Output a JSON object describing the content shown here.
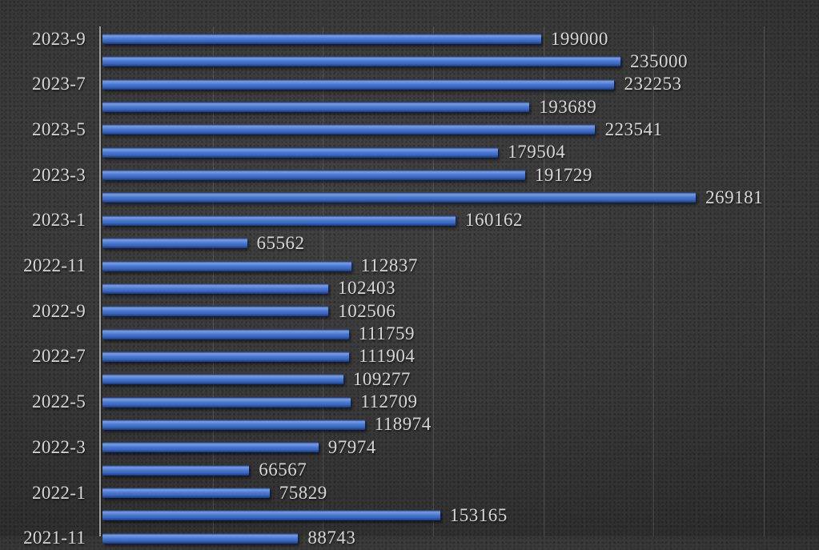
{
  "chart_data": {
    "type": "bar",
    "orientation": "horizontal",
    "title": "",
    "xlabel": "",
    "ylabel": "",
    "xlim": [
      0,
      300000
    ],
    "gridline_interval": 50000,
    "grid": true,
    "legend": false,
    "value_label_position": "outside-end",
    "bar_color": "#4472c4",
    "text_color": "#d6d6d6",
    "background_color": "#3a3a3a",
    "gridline_color": "#5a5a5a",
    "axis_line_color": "#9e9e9e",
    "rows": [
      {
        "label": "2023-9",
        "value": 199000
      },
      {
        "label": "",
        "value": 235000
      },
      {
        "label": "2023-7",
        "value": 232253
      },
      {
        "label": "",
        "value": 193689
      },
      {
        "label": "2023-5",
        "value": 223541
      },
      {
        "label": "",
        "value": 179504
      },
      {
        "label": "2023-3",
        "value": 191729
      },
      {
        "label": "",
        "value": 269181
      },
      {
        "label": "2023-1",
        "value": 160162
      },
      {
        "label": "",
        "value": 65562
      },
      {
        "label": "2022-11",
        "value": 112837
      },
      {
        "label": "",
        "value": 102403
      },
      {
        "label": "2022-9",
        "value": 102506
      },
      {
        "label": "",
        "value": 111759
      },
      {
        "label": "2022-7",
        "value": 111904
      },
      {
        "label": "",
        "value": 109277
      },
      {
        "label": "2022-5",
        "value": 112709
      },
      {
        "label": "",
        "value": 118974
      },
      {
        "label": "2022-3",
        "value": 97974
      },
      {
        "label": "",
        "value": 66567
      },
      {
        "label": "2022-1",
        "value": 75829
      },
      {
        "label": "",
        "value": 153165
      },
      {
        "label": "2021-11",
        "value": 88743
      }
    ]
  }
}
